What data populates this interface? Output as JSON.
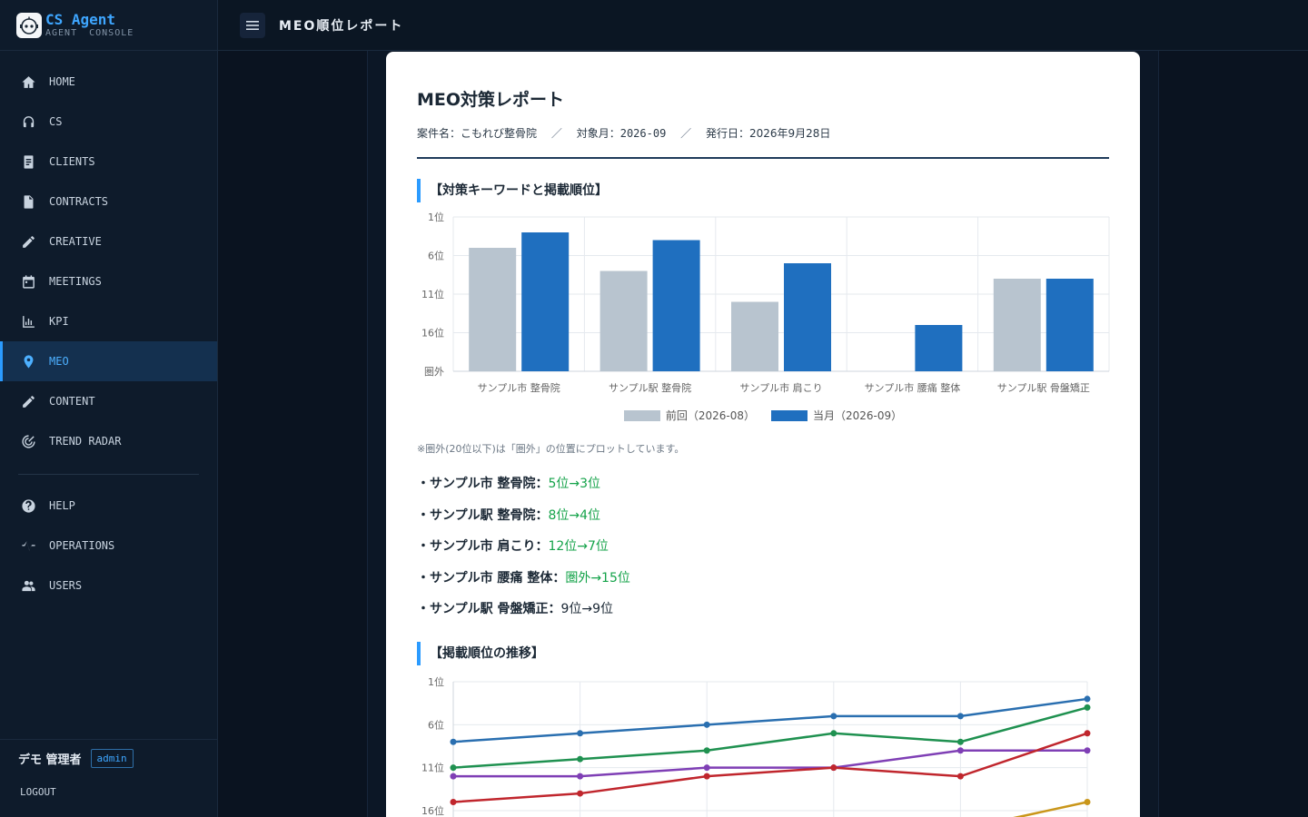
{
  "brand": {
    "name": "CS Agent",
    "sub": "AGENT CONSOLE"
  },
  "nav": {
    "items": [
      {
        "label": "HOME",
        "icon": "home-icon"
      },
      {
        "label": "CS",
        "icon": "headset-icon"
      },
      {
        "label": "CLIENTS",
        "icon": "clipboard-icon"
      },
      {
        "label": "CONTRACTS",
        "icon": "document-icon"
      },
      {
        "label": "CREATIVE",
        "icon": "pencil-icon"
      },
      {
        "label": "MEETINGS",
        "icon": "calendar-icon"
      },
      {
        "label": "KPI",
        "icon": "bar-chart-icon"
      },
      {
        "label": "MEO",
        "icon": "map-pin-icon",
        "active": true
      },
      {
        "label": "CONTENT",
        "icon": "pencil-icon"
      },
      {
        "label": "TREND RADAR",
        "icon": "radar-icon"
      }
    ],
    "secondary": [
      {
        "label": "HELP",
        "icon": "help-icon"
      },
      {
        "label": "OPERATIONS",
        "icon": "pulse-icon"
      },
      {
        "label": "USERS",
        "icon": "users-icon"
      }
    ]
  },
  "user": {
    "name": "デモ 管理者",
    "role": "admin",
    "logout": "LOGOUT"
  },
  "header": {
    "title": "MEO順位レポート"
  },
  "report": {
    "title": "MEO対策レポート",
    "meta": {
      "client_label": "案件名：",
      "client": "こもれび整骨院",
      "month_label": "対象月：",
      "month": "2026-09",
      "issued_label": "発行日：",
      "issued": "2026年9月28日",
      "separator": "／"
    },
    "section1": "【対策キーワードと掲載順位】",
    "note": "※圏外(20位以下)は「圏外」の位置にプロットしています。",
    "keywords": [
      {
        "text": "・サンプル市 整骨院：",
        "change": "5位→3位",
        "improved": true
      },
      {
        "text": "・サンプル駅 整骨院：",
        "change": "8位→4位",
        "improved": true
      },
      {
        "text": "・サンプル市 肩こり：",
        "change": "12位→7位",
        "improved": true
      },
      {
        "text": "・サンプル市 腰痛 整体：",
        "change": "圏外→15位",
        "improved": true
      },
      {
        "text": "・サンプル駅 骨盤矯正：",
        "change": "9位→9位",
        "improved": false
      }
    ],
    "section2": "【掲載順位の推移】"
  },
  "chart_data": [
    {
      "type": "bar",
      "categories": [
        "サンプル市 整骨院",
        "サンプル駅 整骨院",
        "サンプル市 肩こり",
        "サンプル市 腰痛 整体",
        "サンプル駅 骨盤矯正"
      ],
      "y_ticks": [
        "1位",
        "6位",
        "11位",
        "16位",
        "圏外"
      ],
      "y_reversed": true,
      "ylim": [
        1,
        21
      ],
      "series": [
        {
          "name": "前回（2026-08）",
          "color": "#b8c4cf",
          "values": [
            5,
            8,
            12,
            null,
            9
          ]
        },
        {
          "name": "当月（2026-09）",
          "color": "#1f6fbf",
          "values": [
            3,
            4,
            7,
            15,
            9
          ]
        }
      ],
      "grid": true,
      "legend": "bottom"
    },
    {
      "type": "line",
      "y_ticks": [
        "1位",
        "6位",
        "11位",
        "16位"
      ],
      "y_reversed": true,
      "ylim": [
        1,
        16
      ],
      "points_per_series": 6,
      "series": [
        {
          "color": "#2a6fb0",
          "values": [
            8,
            7,
            6,
            5,
            5,
            3
          ]
        },
        {
          "color": "#1f9150",
          "values": [
            11,
            10,
            9,
            7,
            8,
            4
          ]
        },
        {
          "color": "#7f3fb5",
          "values": [
            12,
            12,
            11,
            11,
            9,
            9
          ]
        },
        {
          "color": "#c0262d",
          "values": [
            15,
            14,
            12,
            11,
            12,
            7
          ]
        },
        {
          "color": "#c9961a",
          "values": [
            null,
            null,
            null,
            null,
            18.2,
            15
          ]
        }
      ],
      "grid": true
    }
  ]
}
